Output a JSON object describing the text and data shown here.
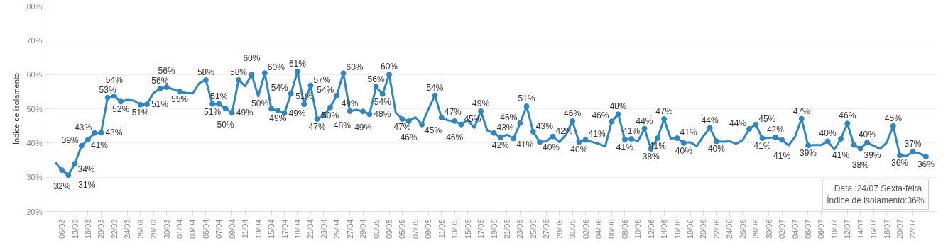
{
  "chart_data": {
    "type": "line",
    "ylabel": "Índice de isolamento",
    "grid": "y",
    "marker": "circle",
    "data_labels": false,
    "ylim": [
      20,
      80
    ],
    "yticks": [
      {
        "value": 20,
        "label": "20%"
      },
      {
        "value": 30,
        "label": "30%"
      },
      {
        "value": 40,
        "label": "40%"
      },
      {
        "value": 50,
        "label": "50%"
      },
      {
        "value": 60,
        "label": "60%"
      },
      {
        "value": 70,
        "label": "70%"
      },
      {
        "value": 80,
        "label": "80%"
      }
    ],
    "categories": [
      null,
      "06/03",
      null,
      "13/03",
      null,
      "18/03",
      null,
      "20/03",
      null,
      "22/03",
      null,
      "24/03",
      null,
      "26/03",
      null,
      "28/03",
      null,
      "30/03",
      null,
      "01/04",
      null,
      "03/04",
      null,
      "05/04",
      null,
      "07/04",
      null,
      "09/04",
      null,
      "11/04",
      null,
      "13/04",
      null,
      "15/04",
      null,
      "17/04",
      null,
      "19/04",
      null,
      "21/04",
      null,
      "23/04",
      null,
      "25/04",
      null,
      "27/04",
      null,
      "29/04",
      null,
      "01/05",
      null,
      "03/05",
      null,
      "05/05",
      null,
      "07/05",
      null,
      "09/05",
      null,
      "11/05",
      null,
      "13/05",
      null,
      "15/05",
      null,
      "17/05",
      null,
      "19/05",
      null,
      "21/05",
      null,
      "23/05",
      null,
      "25/05",
      null,
      "27/05",
      null,
      "29/05",
      null,
      "31/05",
      null,
      "02/06",
      null,
      "04/06",
      null,
      "06/06",
      null,
      "08/06",
      null,
      "10/06",
      null,
      "12/06",
      null,
      "14/06",
      null,
      "16/06",
      null,
      "18/06",
      null,
      "20/06",
      null,
      "22/06",
      null,
      "24/06",
      null,
      "26/06",
      null,
      "28/06",
      null,
      "30/06",
      null,
      "02/07",
      null,
      "04/07",
      null,
      "06/07",
      null,
      "08/07",
      null,
      "10/07",
      null,
      "12/07",
      null,
      "14/07",
      null,
      "16/07",
      null,
      "18/07",
      null,
      "20/07",
      null,
      "22/07",
      null,
      null
    ],
    "series": [
      {
        "color": "#2e86c4",
        "values": [
          34.3,
          32.1,
          30.6,
          34.0,
          39.2,
          41.0,
          42.9,
          43.0,
          53.3,
          53.7,
          52.1,
          52.6,
          52.4,
          51.2,
          51.3,
          54.6,
          55.9,
          56.3,
          55.7,
          55.0,
          54.6,
          54.5,
          57.5,
          58.4,
          51.4,
          51.4,
          50.1,
          48.8,
          58.4,
          56.6,
          60.0,
          53.6,
          60.4,
          50.0,
          49.4,
          48.7,
          54.4,
          60.9,
          51.3,
          56.8,
          47.0,
          48.1,
          50.4,
          53.9,
          60.4,
          49.3,
          49.7,
          49.2,
          48.4,
          56.4,
          54.3,
          60.0,
          48.9,
          47.0,
          46.4,
          47.5,
          45.4,
          49.9,
          53.9,
          47.4,
          46.6,
          46.4,
          45.4,
          46.8,
          44.4,
          49.3,
          43.6,
          42.9,
          41.6,
          42.4,
          41.3,
          45.8,
          50.7,
          43.3,
          40.3,
          40.5,
          41.9,
          40.3,
          42.4,
          46.4,
          40.3,
          40.9,
          40.3,
          39.8,
          39.0,
          46.3,
          48.4,
          41.0,
          41.2,
          40.5,
          44.2,
          38.3,
          41.4,
          47.0,
          41.3,
          41.4,
          40.0,
          40.2,
          39.1,
          42.0,
          44.4,
          40.5,
          40.4,
          40.5,
          39.8,
          40.8,
          44.1,
          45.4,
          41.4,
          41.5,
          41.6,
          40.9,
          39.3,
          41.8,
          47.1,
          39.3,
          39.4,
          39.4,
          40.5,
          38.1,
          41.2,
          45.7,
          39.4,
          38.4,
          40.1,
          39.2,
          38.3,
          40.1,
          45.0,
          36.4,
          36.2,
          37.4,
          37.0,
          36.0
        ],
        "value_labels": [
          null,
          "32%",
          "31%",
          "34%",
          "39%",
          "41%",
          "43%",
          "43%",
          "53%",
          "54%",
          "52%",
          null,
          null,
          "51%",
          "51%",
          null,
          "56%",
          "56%",
          null,
          "55%",
          null,
          null,
          null,
          "58%",
          "51%",
          "51%",
          "50%",
          "49%",
          "58%",
          null,
          "60%",
          null,
          "60%",
          "50%",
          "49%",
          "49%",
          "54%",
          "61%",
          "51%",
          "57%",
          "47%",
          "48%",
          "50%",
          "54%",
          "60%",
          "49%",
          null,
          "49%",
          "48%",
          "56%",
          "54%",
          "60%",
          null,
          "47%",
          "46%",
          null,
          "45%",
          null,
          "54%",
          "47%",
          null,
          "46%",
          "45%",
          null,
          null,
          "49%",
          null,
          "43%",
          "42%",
          null,
          "41%",
          "46%",
          "51%",
          "43%",
          "40%",
          null,
          "42%",
          null,
          null,
          "46%",
          "40%",
          "41%",
          null,
          null,
          null,
          "46%",
          "48%",
          "41%",
          "41%",
          null,
          "44%",
          "38%",
          "41%",
          "47%",
          null,
          "41%",
          "40%",
          null,
          null,
          null,
          "44%",
          "40%",
          null,
          null,
          null,
          null,
          "44%",
          "45%",
          "41%",
          null,
          "42%",
          "41%",
          null,
          null,
          "47%",
          "39%",
          null,
          null,
          "40%",
          null,
          "41%",
          "46%",
          "39%",
          "38%",
          "40%",
          null,
          null,
          null,
          "45%",
          "36%",
          null,
          "37%",
          null,
          "36%"
        ]
      }
    ],
    "annotations": [
      "Data :24/07  Sexta-feira",
      "Índice de isolamento:36%"
    ]
  }
}
